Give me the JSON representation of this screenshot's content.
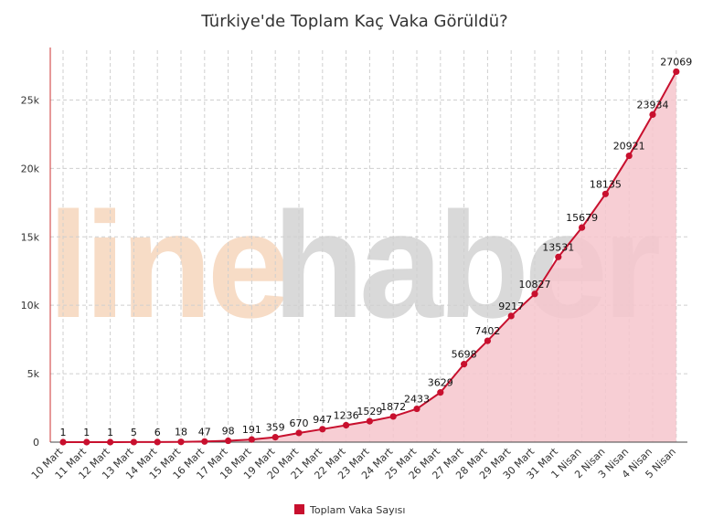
{
  "chart_data": {
    "type": "area",
    "title": "Türkiye'de Toplam Kaç Vaka Görüldü?",
    "xlabel": "",
    "ylabel": "",
    "categories": [
      "10 Mart",
      "11 Mart",
      "12 Mart",
      "13 Mart",
      "14 Mart",
      "15 Mart",
      "16 Mart",
      "17 Mart",
      "18 Mart",
      "19 Mart",
      "20 Mart",
      "21 Mart",
      "22 Mart",
      "23 Mart",
      "24 Mart",
      "25 Mart",
      "26 Mart",
      "27 Mart",
      "28 Mart",
      "29 Mart",
      "30 Mart",
      "31 Mart",
      "1 Nisan",
      "2 Nisan",
      "3 Nisan",
      "4 Nisan",
      "5 Nisan"
    ],
    "series": [
      {
        "name": "Toplam Vaka Sayısı",
        "values": [
          1,
          1,
          1,
          5,
          6,
          18,
          47,
          98,
          191,
          359,
          670,
          947,
          1236,
          1529,
          1872,
          2433,
          3629,
          5698,
          7402,
          9217,
          10827,
          13531,
          15679,
          18135,
          20921,
          23934,
          27069
        ],
        "color": "#c8102e",
        "fill": "#f6c6cd"
      }
    ],
    "ylim": [
      0,
      28500
    ],
    "yticks": [
      0,
      5000,
      10000,
      15000,
      20000,
      25000
    ],
    "ytick_labels": [
      "0",
      "5k",
      "10k",
      "15k",
      "20k",
      "25k"
    ],
    "grid": true,
    "legend": "bottom-center",
    "watermark": {
      "part1": "line",
      "part2": "haber",
      "color1": "#f7dcc6",
      "color2": "#d9d9d9"
    }
  }
}
